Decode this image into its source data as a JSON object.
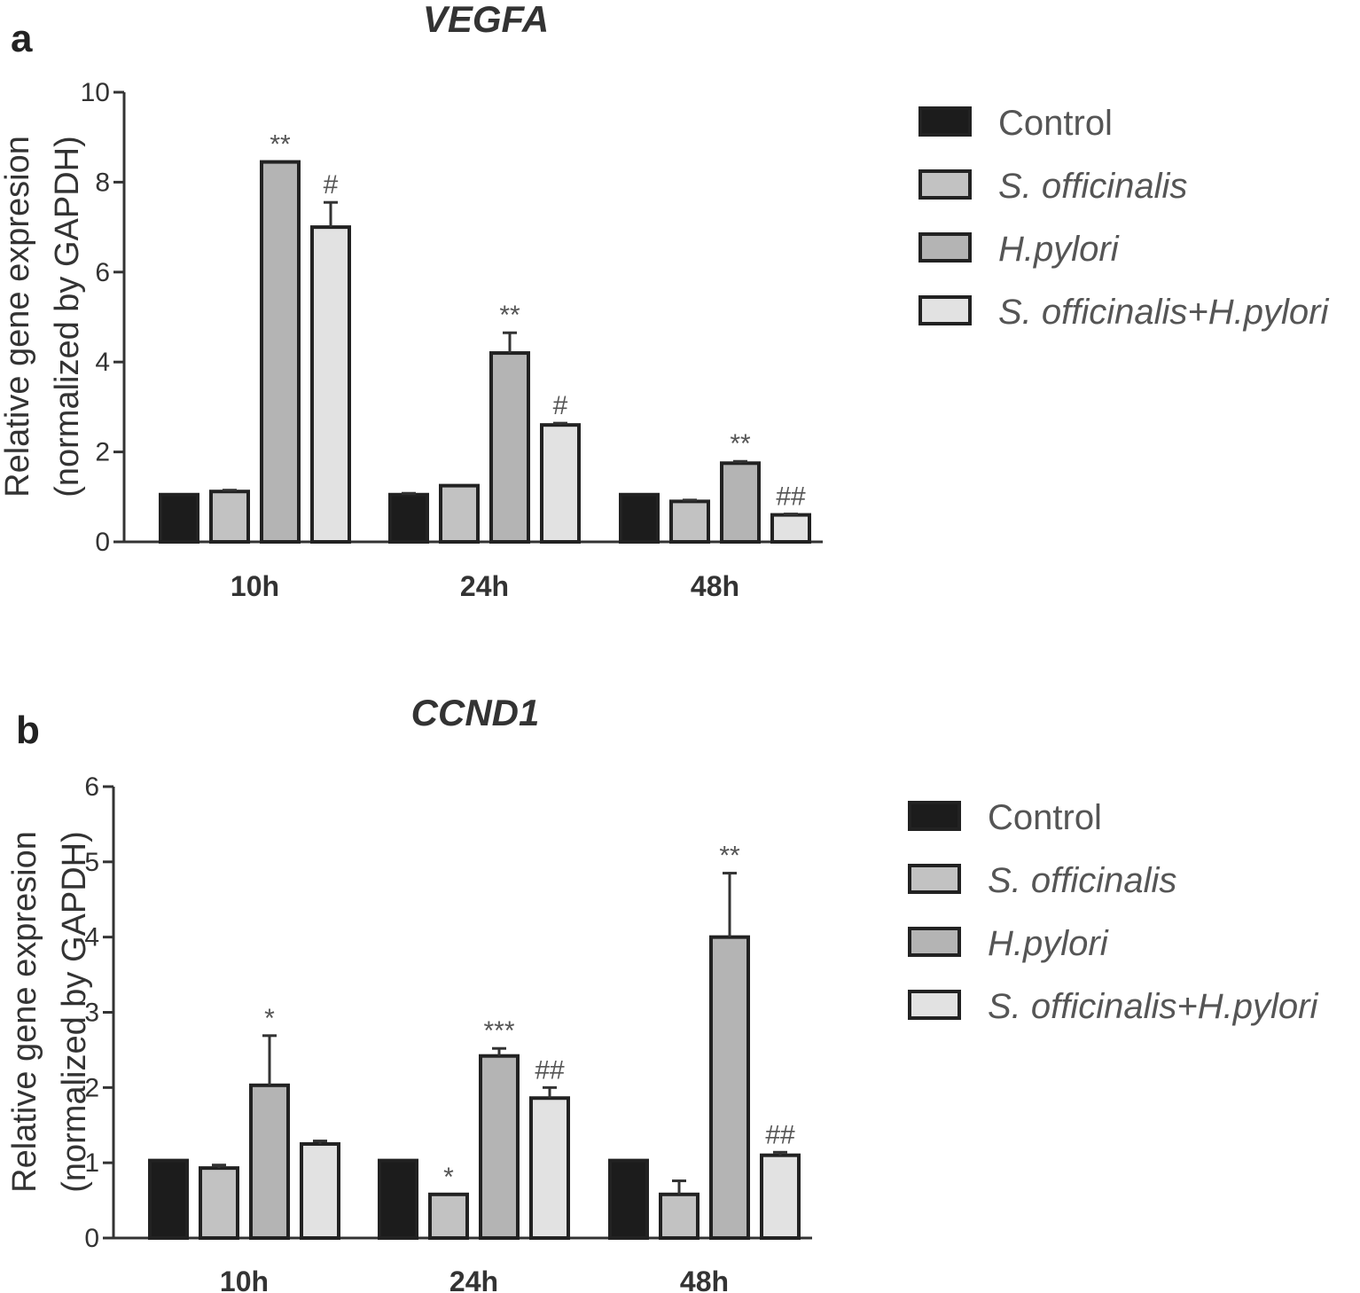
{
  "chart_data": [
    {
      "panel": "a",
      "type": "bar",
      "title": "VEGFA",
      "ylabel": [
        "Relative gene expresion",
        "(normalized by GAPDH)"
      ],
      "xlabel": "",
      "ylim": [
        0,
        10
      ],
      "yticks": [
        0,
        2,
        4,
        6,
        8,
        10
      ],
      "categories": [
        "10h",
        "24h",
        "48h"
      ],
      "series": [
        {
          "name": "Control",
          "italic": false,
          "color": "#1c1c1c",
          "values": [
            1.05,
            1.05,
            1.05
          ],
          "errors": [
            0,
            0.03,
            0
          ],
          "annotations": [
            "",
            "",
            ""
          ]
        },
        {
          "name": "S. officinalis",
          "italic": true,
          "color": "#c2c2c2",
          "values": [
            1.12,
            1.25,
            0.9
          ],
          "errors": [
            0.03,
            0,
            0.03
          ],
          "annotations": [
            "",
            "",
            ""
          ]
        },
        {
          "name": "H.pylori",
          "italic": true,
          "color": "#b4b4b4",
          "values": [
            8.45,
            4.2,
            1.75
          ],
          "errors": [
            0,
            0.45,
            0.04
          ],
          "annotations": [
            "**",
            "**",
            "**"
          ]
        },
        {
          "name": "S. officinalis+H.pylori",
          "italic": true,
          "color": "#e2e2e2",
          "values": [
            7.0,
            2.6,
            0.6
          ],
          "errors": [
            0.55,
            0.04,
            0.02
          ],
          "annotations": [
            "#",
            "#",
            "##"
          ]
        }
      ]
    },
    {
      "panel": "b",
      "type": "bar",
      "title": "CCND1",
      "ylabel": [
        "Relative gene expresion",
        "(normalized by GAPDH)"
      ],
      "xlabel": "",
      "ylim": [
        0,
        6
      ],
      "yticks": [
        0,
        1,
        2,
        3,
        4,
        5,
        6
      ],
      "categories": [
        "10h",
        "24h",
        "48h"
      ],
      "series": [
        {
          "name": "Control",
          "italic": false,
          "color": "#1c1c1c",
          "values": [
            1.03,
            1.03,
            1.03
          ],
          "errors": [
            0,
            0,
            0
          ],
          "annotations": [
            "",
            "",
            ""
          ]
        },
        {
          "name": "S. officinalis",
          "italic": true,
          "color": "#c2c2c2",
          "values": [
            0.93,
            0.58,
            0.58
          ],
          "errors": [
            0.04,
            0,
            0.18
          ],
          "annotations": [
            "",
            "*",
            ""
          ]
        },
        {
          "name": "H.pylori",
          "italic": true,
          "color": "#b4b4b4",
          "values": [
            2.03,
            2.42,
            4.0
          ],
          "errors": [
            0.66,
            0.1,
            0.85
          ],
          "annotations": [
            "*",
            "***",
            "**"
          ]
        },
        {
          "name": "S. officinalis+H.pylori",
          "italic": true,
          "color": "#e2e2e2",
          "values": [
            1.25,
            1.86,
            1.1
          ],
          "errors": [
            0.04,
            0.14,
            0.04
          ],
          "annotations": [
            "",
            "##",
            "##"
          ]
        }
      ]
    }
  ]
}
